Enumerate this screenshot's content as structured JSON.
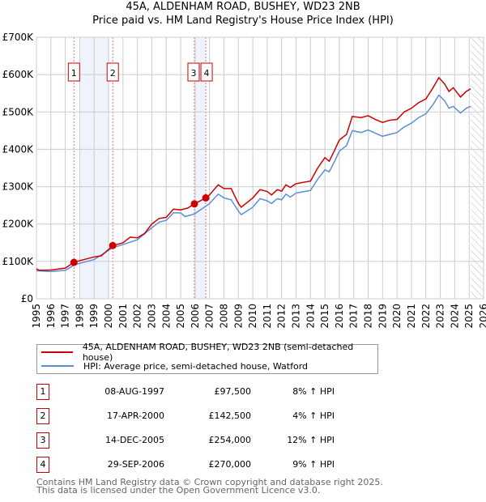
{
  "chart_data": {
    "type": "line",
    "title": "45A, ALDENHAM ROAD, BUSHEY, WD23 2NB",
    "subtitle": "Price paid vs. HM Land Registry's House Price Index (HPI)",
    "xlim": [
      1995,
      2026
    ],
    "ylim": [
      0,
      700000
    ],
    "grid": true,
    "y_ticks": [
      {
        "v": 0,
        "label": "£0"
      },
      {
        "v": 100000,
        "label": "£100K"
      },
      {
        "v": 200000,
        "label": "£200K"
      },
      {
        "v": 300000,
        "label": "£300K"
      },
      {
        "v": 400000,
        "label": "£400K"
      },
      {
        "v": 500000,
        "label": "£500K"
      },
      {
        "v": 600000,
        "label": "£600K"
      },
      {
        "v": 700000,
        "label": "£700K"
      }
    ],
    "x_ticks": [
      "1995",
      "1996",
      "1997",
      "1998",
      "1999",
      "2000",
      "2001",
      "2002",
      "2003",
      "2004",
      "2005",
      "2006",
      "2007",
      "2008",
      "2009",
      "2010",
      "2011",
      "2012",
      "2013",
      "2014",
      "2015",
      "2016",
      "2017",
      "2018",
      "2019",
      "2020",
      "2021",
      "2022",
      "2023",
      "2024",
      "2025",
      "2026"
    ],
    "shaded_ranges": [
      [
        1998.0,
        2000.0
      ],
      [
        2006.0,
        2006.75
      ]
    ],
    "forecast_hatch_from": 2025.1,
    "series": [
      {
        "name": "45A, ALDENHAM ROAD, BUSHEY, WD23 2NB (semi-detached house)",
        "color": "#cc0000",
        "x": [
          1995,
          1995.2,
          1996,
          1997,
          1997.6,
          1998,
          1999,
          1999.5,
          2000.3,
          2001,
          2001.5,
          2002,
          2002.5,
          2003,
          2003.5,
          2004,
          2004.5,
          2005,
          2005.5,
          2005.95,
          2006.75,
          2007,
          2007.6,
          2008,
          2008.5,
          2009,
          2009.2,
          2010,
          2010.5,
          2011,
          2011.3,
          2011.7,
          2012,
          2012.3,
          2012.6,
          2013,
          2014,
          2014.5,
          2015,
          2015.3,
          2015.7,
          2016,
          2016.5,
          2016.9,
          2017.5,
          2018,
          2018.5,
          2019,
          2019.5,
          2020,
          2020.5,
          2021,
          2021.5,
          2022,
          2022.5,
          2022.9,
          2023.3,
          2023.6,
          2023.9,
          2024.4,
          2024.8,
          2025.1
        ],
        "y": [
          80000,
          76000,
          77000,
          82000,
          97500,
          102000,
          112000,
          115000,
          142500,
          150000,
          165000,
          163000,
          175000,
          200000,
          215000,
          218000,
          240000,
          238000,
          243000,
          254000,
          270000,
          278000,
          305000,
          295000,
          295000,
          255000,
          245000,
          270000,
          292000,
          287000,
          278000,
          292000,
          288000,
          305000,
          298000,
          308000,
          315000,
          350000,
          378000,
          368000,
          400000,
          425000,
          440000,
          488000,
          485000,
          490000,
          480000,
          472000,
          478000,
          480000,
          500000,
          510000,
          525000,
          535000,
          565000,
          592000,
          575000,
          555000,
          565000,
          540000,
          555000,
          562000
        ]
      },
      {
        "name": "HPI: Average price, semi-detached house, Watford",
        "color": "#5b8fd4",
        "x": [
          1995,
          1996,
          1997,
          1997.6,
          1998,
          1999,
          2000.3,
          2001,
          2002,
          2003,
          2003.5,
          2004,
          2004.5,
          2005,
          2005.3,
          2005.95,
          2006.75,
          2007,
          2007.6,
          2008,
          2008.5,
          2009,
          2009.2,
          2010,
          2010.5,
          2011,
          2011.3,
          2011.7,
          2012,
          2012.3,
          2012.6,
          2013,
          2014,
          2014.5,
          2015,
          2015.3,
          2015.7,
          2016,
          2016.5,
          2016.9,
          2017.5,
          2018,
          2018.5,
          2019,
          2019.5,
          2020,
          2020.5,
          2021,
          2021.5,
          2022,
          2022.5,
          2022.9,
          2023.3,
          2023.6,
          2023.9,
          2024.4,
          2024.8,
          2025.1
        ],
        "y": [
          75000,
          73000,
          76000,
          90000,
          95000,
          105000,
          137000,
          145000,
          158000,
          190000,
          205000,
          210000,
          230000,
          230000,
          220000,
          227000,
          248000,
          255000,
          280000,
          270000,
          265000,
          235000,
          225000,
          245000,
          268000,
          262000,
          255000,
          268000,
          265000,
          280000,
          272000,
          283000,
          290000,
          320000,
          345000,
          340000,
          370000,
          395000,
          410000,
          450000,
          445000,
          452000,
          443000,
          435000,
          440000,
          445000,
          460000,
          470000,
          485000,
          495000,
          520000,
          545000,
          530000,
          510000,
          515000,
          497000,
          510000,
          515000
        ]
      }
    ],
    "sales": [
      {
        "n": "1",
        "x": 1997.6,
        "date": "08-AUG-1997",
        "price": "£97,500",
        "value": 97500,
        "hpi": "8% ↑ HPI"
      },
      {
        "n": "2",
        "x": 2000.29,
        "date": "17-APR-2000",
        "price": "£142,500",
        "value": 142500,
        "hpi": "4% ↑ HPI"
      },
      {
        "n": "3",
        "x": 2005.95,
        "date": "14-DEC-2005",
        "price": "£254,000",
        "value": 254000,
        "hpi": "12% ↑ HPI"
      },
      {
        "n": "4",
        "x": 2006.74,
        "date": "29-SEP-2006",
        "price": "£270,000",
        "value": 270000,
        "hpi": "9% ↑ HPI"
      }
    ],
    "footer": [
      "Contains HM Land Registry data © Crown copyright and database right 2025.",
      "This data is licensed under the Open Government Licence v3.0."
    ]
  }
}
